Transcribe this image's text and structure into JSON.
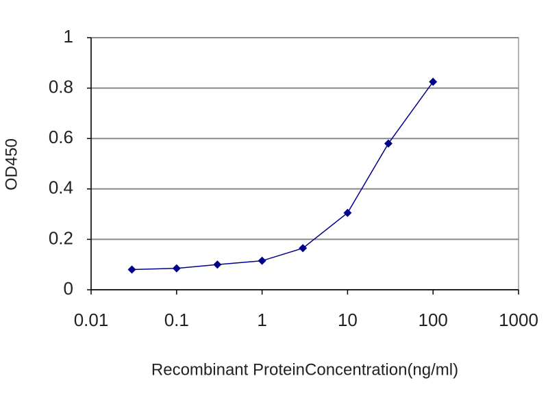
{
  "chart_data": {
    "type": "line",
    "x_label": "Recombinant ProteinConcentration(ng/ml)",
    "y_label": "OD450",
    "x": [
      0.03,
      0.1,
      0.3,
      1,
      3,
      10,
      30,
      100
    ],
    "values": [
      0.08,
      0.085,
      0.1,
      0.115,
      0.165,
      0.305,
      0.58,
      0.825
    ],
    "color": "#00008b",
    "xscale": "log",
    "xlim": [
      0.01,
      1000
    ],
    "xticks": [
      0.01,
      0.1,
      1,
      10,
      100,
      1000
    ],
    "ylim": [
      0,
      1
    ],
    "yticks": [
      0,
      0.2,
      0.4,
      0.6,
      0.8,
      1
    ],
    "grid": true
  }
}
